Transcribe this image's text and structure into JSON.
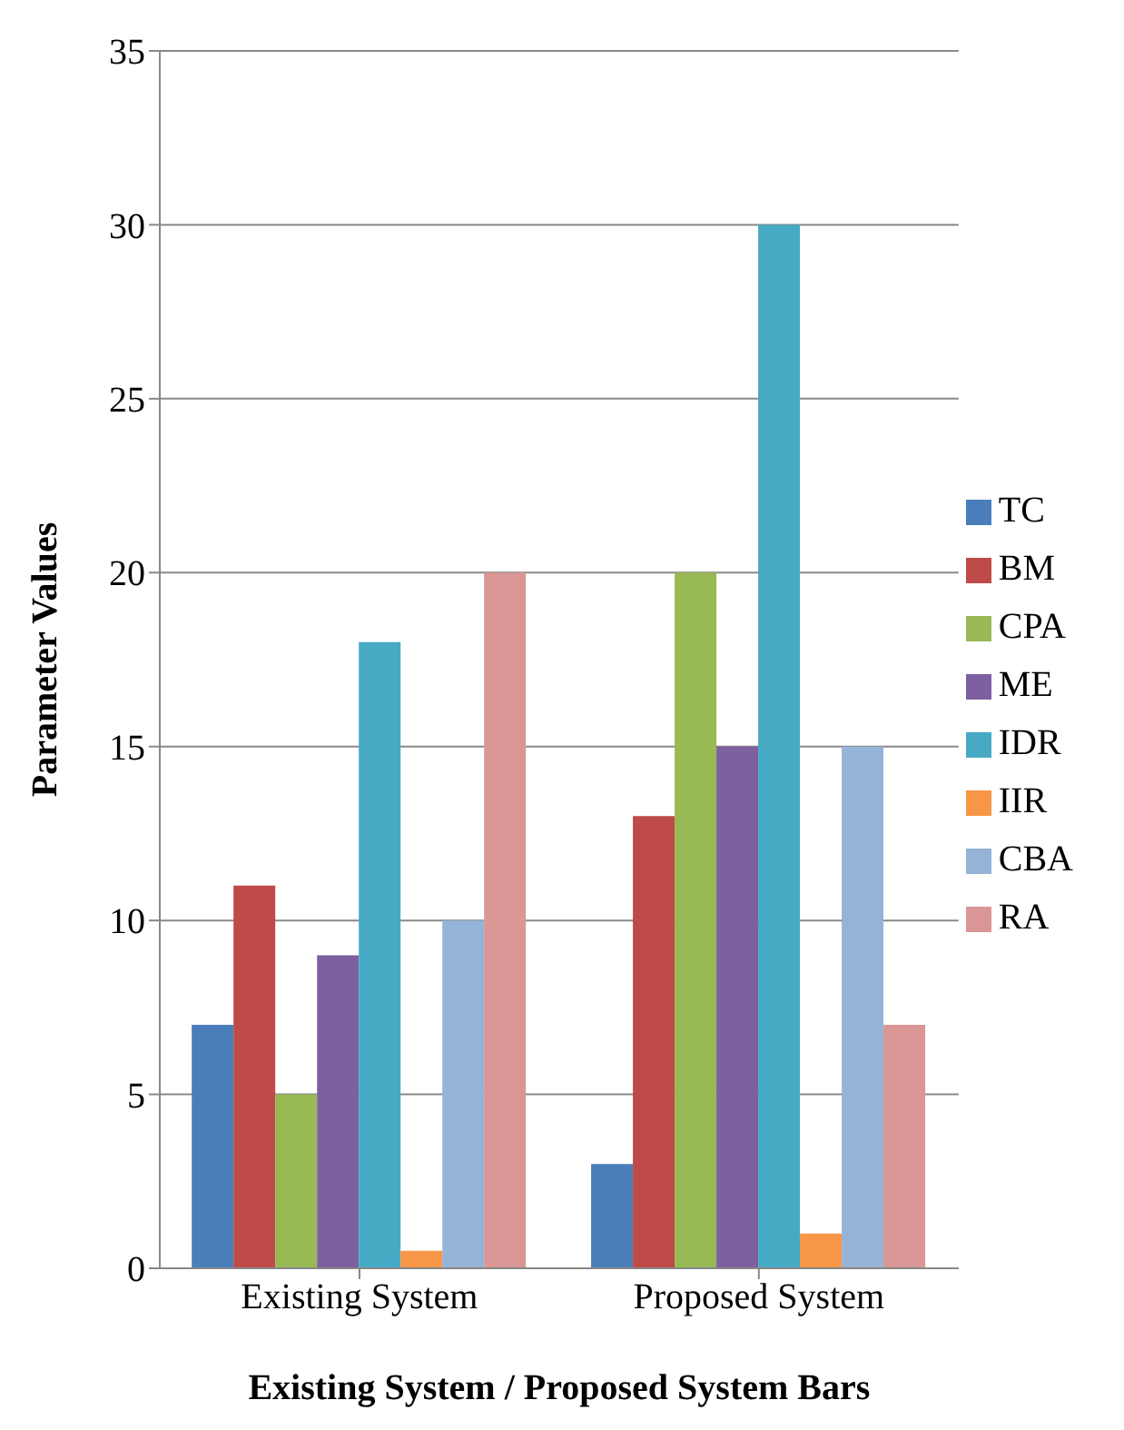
{
  "chart_data": {
    "type": "bar",
    "xlabel": "Existing System / Proposed System Bars",
    "ylabel": "Parameter Values",
    "categories": [
      "Existing System",
      "Proposed System"
    ],
    "series": [
      {
        "name": "TC",
        "color": "#4a7ebb",
        "values": [
          7,
          3
        ]
      },
      {
        "name": "BM",
        "color": "#be4b48",
        "values": [
          11,
          13
        ]
      },
      {
        "name": "CPA",
        "color": "#98b954",
        "values": [
          5,
          20
        ]
      },
      {
        "name": "ME",
        "color": "#7d60a0",
        "values": [
          9,
          15
        ]
      },
      {
        "name": "IDR",
        "color": "#46aac5",
        "values": [
          18,
          30
        ]
      },
      {
        "name": "IIR",
        "color": "#f79646",
        "values": [
          0.5,
          1
        ]
      },
      {
        "name": "CBA",
        "color": "#95b3d7",
        "values": [
          10,
          15
        ]
      },
      {
        "name": "RA",
        "color": "#d99694",
        "values": [
          20,
          7
        ]
      }
    ],
    "ylim": [
      0,
      35
    ],
    "yticks": [
      0,
      5,
      10,
      15,
      20,
      25,
      30,
      35
    ],
    "grid": "y",
    "legend": "right"
  }
}
